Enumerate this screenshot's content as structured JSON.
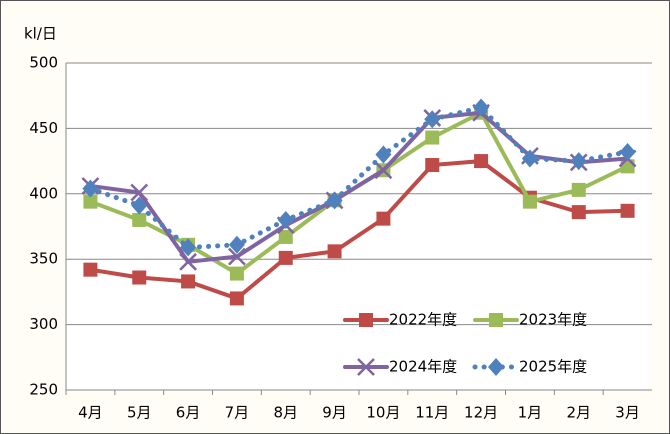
{
  "chart_data": {
    "type": "line",
    "y_label": "kl/日",
    "categories": [
      "4月",
      "5月",
      "6月",
      "7月",
      "8月",
      "9月",
      "10月",
      "11月",
      "12月",
      "1月",
      "2月",
      "3月"
    ],
    "series": [
      {
        "name": "2022年度",
        "color": "#be4b48",
        "marker": "square",
        "values": [
          342,
          336,
          333,
          320,
          351,
          356,
          381,
          422,
          425,
          397,
          386,
          387
        ]
      },
      {
        "name": "2023年度",
        "color": "#9bbb59",
        "marker": "square",
        "values": [
          394,
          380,
          361,
          339,
          367,
          395,
          418,
          443,
          462,
          394,
          403,
          421
        ]
      },
      {
        "name": "2024年度",
        "color": "#8064a2",
        "marker": "x",
        "values": [
          406,
          401,
          348,
          352,
          376,
          395,
          418,
          458,
          462,
          429,
          424,
          427
        ]
      },
      {
        "name": "2025年度",
        "color": "#4f81bd",
        "marker": "diamond",
        "dotted": true,
        "values": [
          404,
          391,
          359,
          361,
          380,
          395,
          430,
          457,
          466,
          427,
          425,
          432
        ]
      }
    ],
    "ylim": [
      250,
      500
    ],
    "yticks": [
      250,
      300,
      350,
      400,
      450,
      500
    ],
    "grid": true
  }
}
